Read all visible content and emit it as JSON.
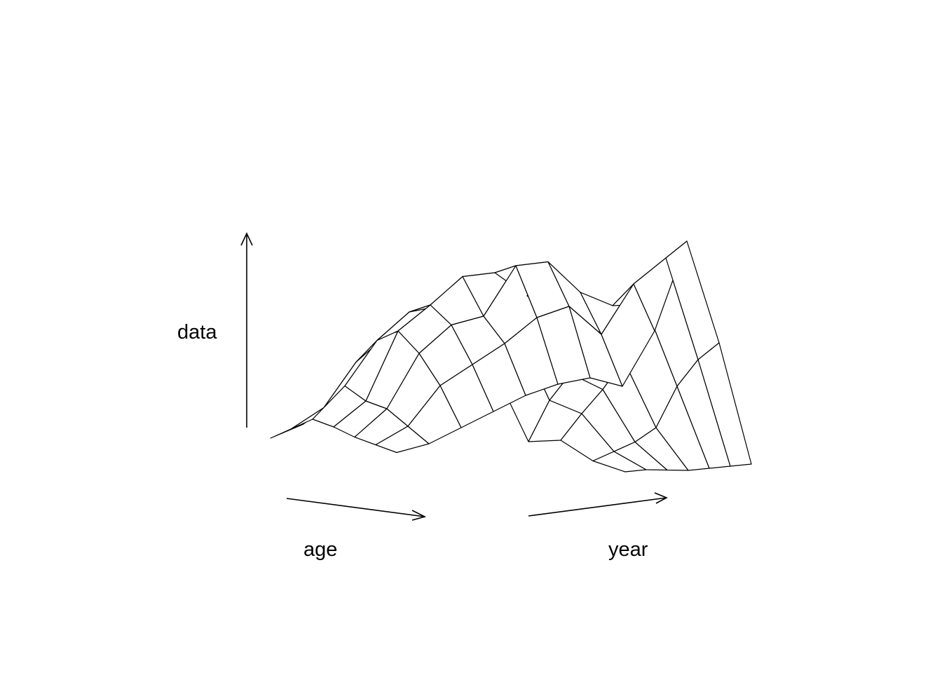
{
  "chart_data": {
    "type": "surface",
    "title": "",
    "xlabel": "age",
    "ylabel": "year",
    "zlabel": "data",
    "style": "wireframe perspective (persp), white facets with black edges",
    "grid_shape": [
      7,
      12
    ],
    "z_range": [
      0,
      1
    ],
    "surface": [
      [
        0.0,
        0.07,
        0.18,
        0.3,
        0.38,
        0.44,
        0.5,
        0.36,
        0.1,
        0.12,
        0.05,
        0.02
      ],
      [
        0.05,
        0.15,
        0.35,
        0.48,
        0.52,
        0.56,
        0.62,
        0.55,
        0.28,
        0.24,
        0.1,
        0.04
      ],
      [
        0.1,
        0.25,
        0.45,
        0.58,
        0.62,
        0.7,
        0.72,
        0.6,
        0.4,
        0.35,
        0.15,
        0.05
      ],
      [
        0.08,
        0.2,
        0.5,
        0.62,
        0.75,
        0.78,
        0.7,
        0.62,
        0.52,
        0.48,
        0.22,
        0.06
      ],
      [
        0.05,
        0.18,
        0.42,
        0.55,
        0.6,
        0.82,
        0.85,
        0.74,
        0.7,
        0.72,
        0.4,
        0.08
      ],
      [
        0.03,
        0.12,
        0.3,
        0.4,
        0.5,
        0.62,
        0.68,
        0.58,
        0.8,
        0.92,
        0.52,
        0.1
      ],
      [
        0.01,
        0.06,
        0.14,
        0.22,
        0.3,
        0.36,
        0.4,
        0.38,
        0.62,
        1.0,
        0.6,
        0.12
      ]
    ]
  }
}
